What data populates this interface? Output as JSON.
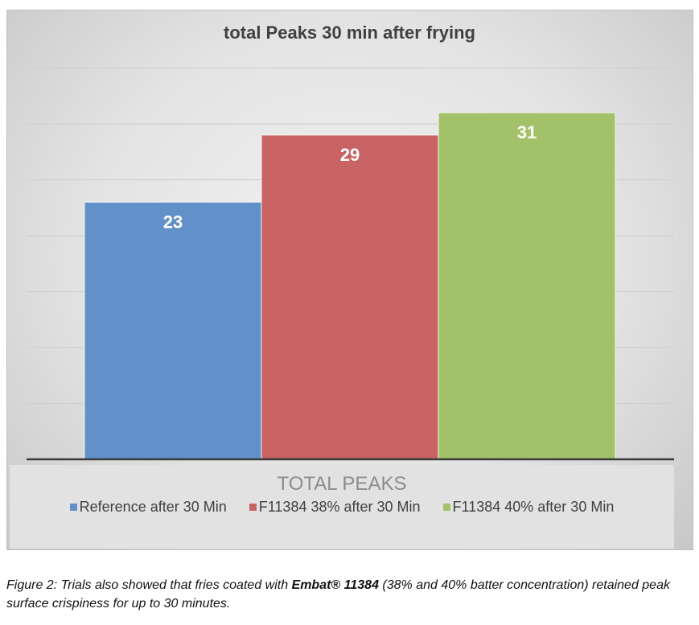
{
  "chart_data": {
    "type": "bar",
    "title": "total Peaks 30 min after frying",
    "xlabel": "TOTAL PEAKS",
    "ylabel": "",
    "ylim": [
      0,
      40
    ],
    "grid": true,
    "gridlines": [
      5,
      10,
      15,
      20,
      25,
      30,
      35
    ],
    "legend_position": "bottom",
    "categories": [
      "TOTAL PEAKS"
    ],
    "series": [
      {
        "name": "Reference after 30 Min",
        "values": [
          23
        ],
        "color": "#6290c8",
        "label": "23"
      },
      {
        "name": "F11384 38% after 30 Min",
        "values": [
          29
        ],
        "color": "#c96363",
        "label": "29"
      },
      {
        "name": "F11384 40% after 30 Min",
        "values": [
          31
        ],
        "color": "#a3c168",
        "label": "31"
      }
    ]
  },
  "caption": {
    "prefix": "Figure 2: Trials also showed that fries coated with ",
    "bold": "Embat® 11384",
    "suffix": " (38% and 40% batter concentration) retained peak surface crispiness for up to 30 minutes."
  }
}
